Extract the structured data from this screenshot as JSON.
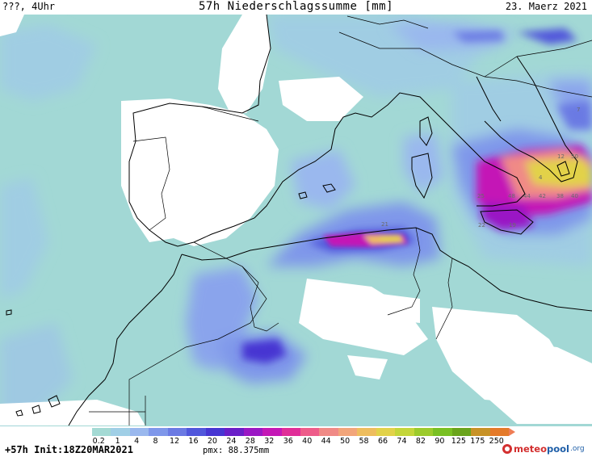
{
  "header": {
    "left": "???, 4Uhr",
    "title": "57h Niederschlagssumme [mm]",
    "date": "23. Maerz 2021"
  },
  "map_labels": [
    "50",
    "12",
    "21",
    "25",
    "48",
    "44",
    "42",
    "38",
    "40",
    "22",
    "19",
    "7",
    "4"
  ],
  "legend": {
    "labels": [
      "0.2",
      "1",
      "4",
      "8",
      "12",
      "16",
      "20",
      "24",
      "28",
      "32",
      "36",
      "40",
      "44",
      "50",
      "58",
      "66",
      "74",
      "82",
      "90",
      "125",
      "175",
      "250"
    ],
    "colors": [
      "#a4dad4",
      "#a0cfe6",
      "#9ab8ee",
      "#7f97ea",
      "#6b7ae3",
      "#5157db",
      "#4736d2",
      "#6a1fc8",
      "#9a18c4",
      "#c418b6",
      "#e02e98",
      "#ee5c8a",
      "#f08a86",
      "#f2a57a",
      "#eebd5e",
      "#e2d24a",
      "#c4d63a",
      "#9ccb2c",
      "#79c023",
      "#6aa41c",
      "#c89226",
      "#e47a2a"
    ],
    "max_arrow_color": "#ef7d55"
  },
  "footer": {
    "init": "+57h Init:18Z20MAR2021",
    "pmx": "pmx: 88.375mm"
  },
  "logo": {
    "meteo": "meteo",
    "pool": "pool",
    "org": ".org"
  }
}
